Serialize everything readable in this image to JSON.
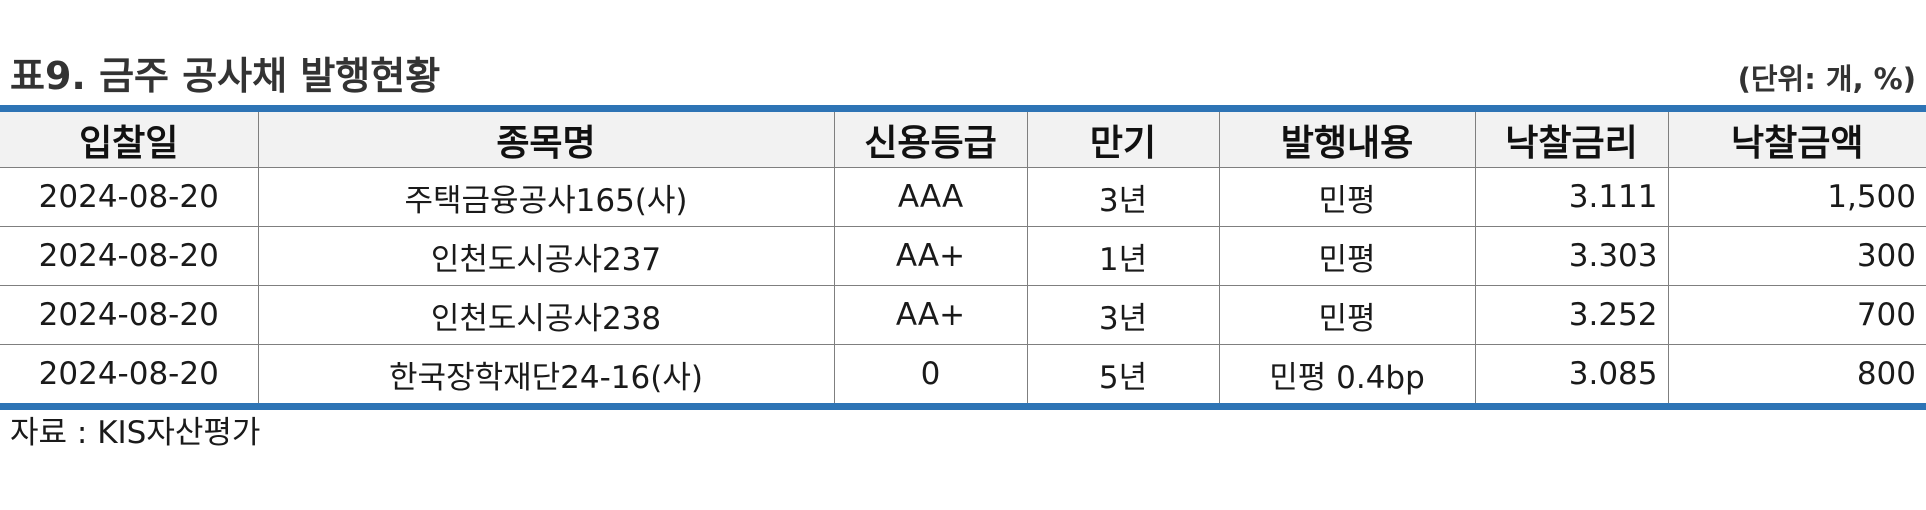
{
  "title": "표9. 금주 공사채 발행현황",
  "unit": "(단위: 개, %)",
  "table": {
    "headers": [
      "입찰일",
      "종목명",
      "신용등급",
      "만기",
      "발행내용",
      "낙찰금리",
      "낙찰금액"
    ],
    "rows": [
      [
        "2024-08-20",
        "주택금융공사165(사)",
        "AAA",
        "3년",
        "민평",
        "3.111",
        "1,500"
      ],
      [
        "2024-08-20",
        "인천도시공사237",
        "AA+",
        "1년",
        "민평",
        "3.303",
        "300"
      ],
      [
        "2024-08-20",
        "인천도시공사238",
        "AA+",
        "3년",
        "민평",
        "3.252",
        "700"
      ],
      [
        "2024-08-20",
        "한국장학재단24-16(사)",
        "0",
        "5년",
        "민평 0.4bp",
        "3.085",
        "800"
      ]
    ]
  },
  "source": "자료 : KIS자산평가",
  "colors": {
    "accent_border": "#2e74b5",
    "header_bg": "#f2f2f2"
  }
}
